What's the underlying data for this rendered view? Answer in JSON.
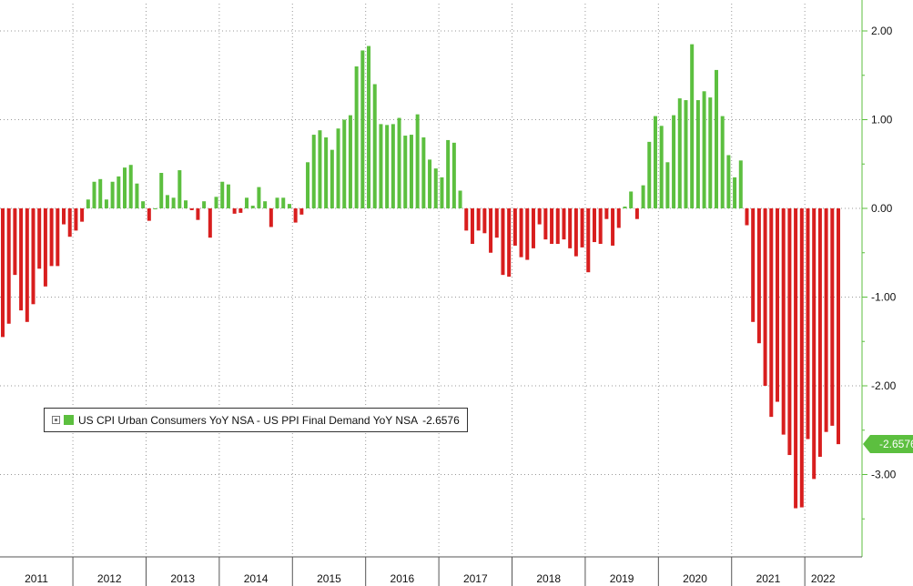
{
  "chart_data": {
    "type": "bar",
    "title": "",
    "xlabel": "",
    "ylabel": "",
    "ylim": [
      -3.9,
      2.3
    ],
    "yticks": [
      2.0,
      1.0,
      0.0,
      -1.0,
      -2.0,
      -3.0
    ],
    "ytick_labels": [
      "2.00",
      "1.00",
      "0.00",
      "-1.00",
      "-2.00",
      "-3.00"
    ],
    "grid": true,
    "legend_position": "bottom-left",
    "positive_color": "#5cbf3f",
    "negative_color": "#d81e1e",
    "axis_color": "#5cbf3f",
    "year_labels": [
      "2011",
      "2012",
      "2013",
      "2014",
      "2015",
      "2016",
      "2017",
      "2018",
      "2019",
      "2020",
      "2021",
      "2022"
    ],
    "series": [
      {
        "name": "US CPI Urban Consumers YoY NSA - US PPI Final Demand YoY NSA",
        "last_value_label": "-2.6576",
        "start": "2011-01",
        "values": [
          -1.45,
          -1.3,
          -0.75,
          -1.15,
          -1.28,
          -1.08,
          -0.68,
          -0.88,
          -0.65,
          -0.65,
          -0.18,
          -0.32,
          -0.25,
          -0.15,
          0.1,
          0.3,
          0.33,
          0.1,
          0.3,
          0.36,
          0.46,
          0.49,
          0.28,
          0.08,
          -0.14,
          0.0,
          0.4,
          0.15,
          0.12,
          0.43,
          0.09,
          -0.02,
          -0.13,
          0.08,
          -0.33,
          0.13,
          0.3,
          0.27,
          -0.06,
          -0.05,
          0.12,
          0.03,
          0.24,
          0.08,
          -0.21,
          0.12,
          0.12,
          0.05,
          -0.16,
          -0.07,
          0.52,
          0.83,
          0.88,
          0.8,
          0.66,
          0.9,
          1.0,
          1.05,
          1.6,
          1.78,
          1.83,
          1.4,
          0.95,
          0.94,
          0.95,
          1.02,
          0.82,
          0.83,
          1.06,
          0.8,
          0.55,
          0.45,
          0.35,
          0.77,
          0.74,
          0.2,
          -0.25,
          -0.4,
          -0.25,
          -0.28,
          -0.5,
          -0.33,
          -0.75,
          -0.77,
          -0.42,
          -0.55,
          -0.58,
          -0.45,
          -0.18,
          -0.35,
          -0.4,
          -0.4,
          -0.35,
          -0.45,
          -0.54,
          -0.44,
          -0.72,
          -0.38,
          -0.4,
          -0.12,
          -0.42,
          -0.22,
          0.02,
          0.19,
          -0.12,
          0.26,
          0.75,
          1.04,
          0.93,
          0.52,
          1.05,
          1.24,
          1.22,
          1.85,
          1.22,
          1.32,
          1.25,
          1.56,
          1.04,
          0.6,
          0.35,
          0.54,
          -0.19,
          -1.28,
          -1.52,
          -2.0,
          -2.35,
          -2.18,
          -2.55,
          -2.78,
          -3.38,
          -3.37,
          -2.6,
          -3.05,
          -2.8,
          -2.52,
          -2.45,
          -2.6576
        ]
      }
    ]
  }
}
